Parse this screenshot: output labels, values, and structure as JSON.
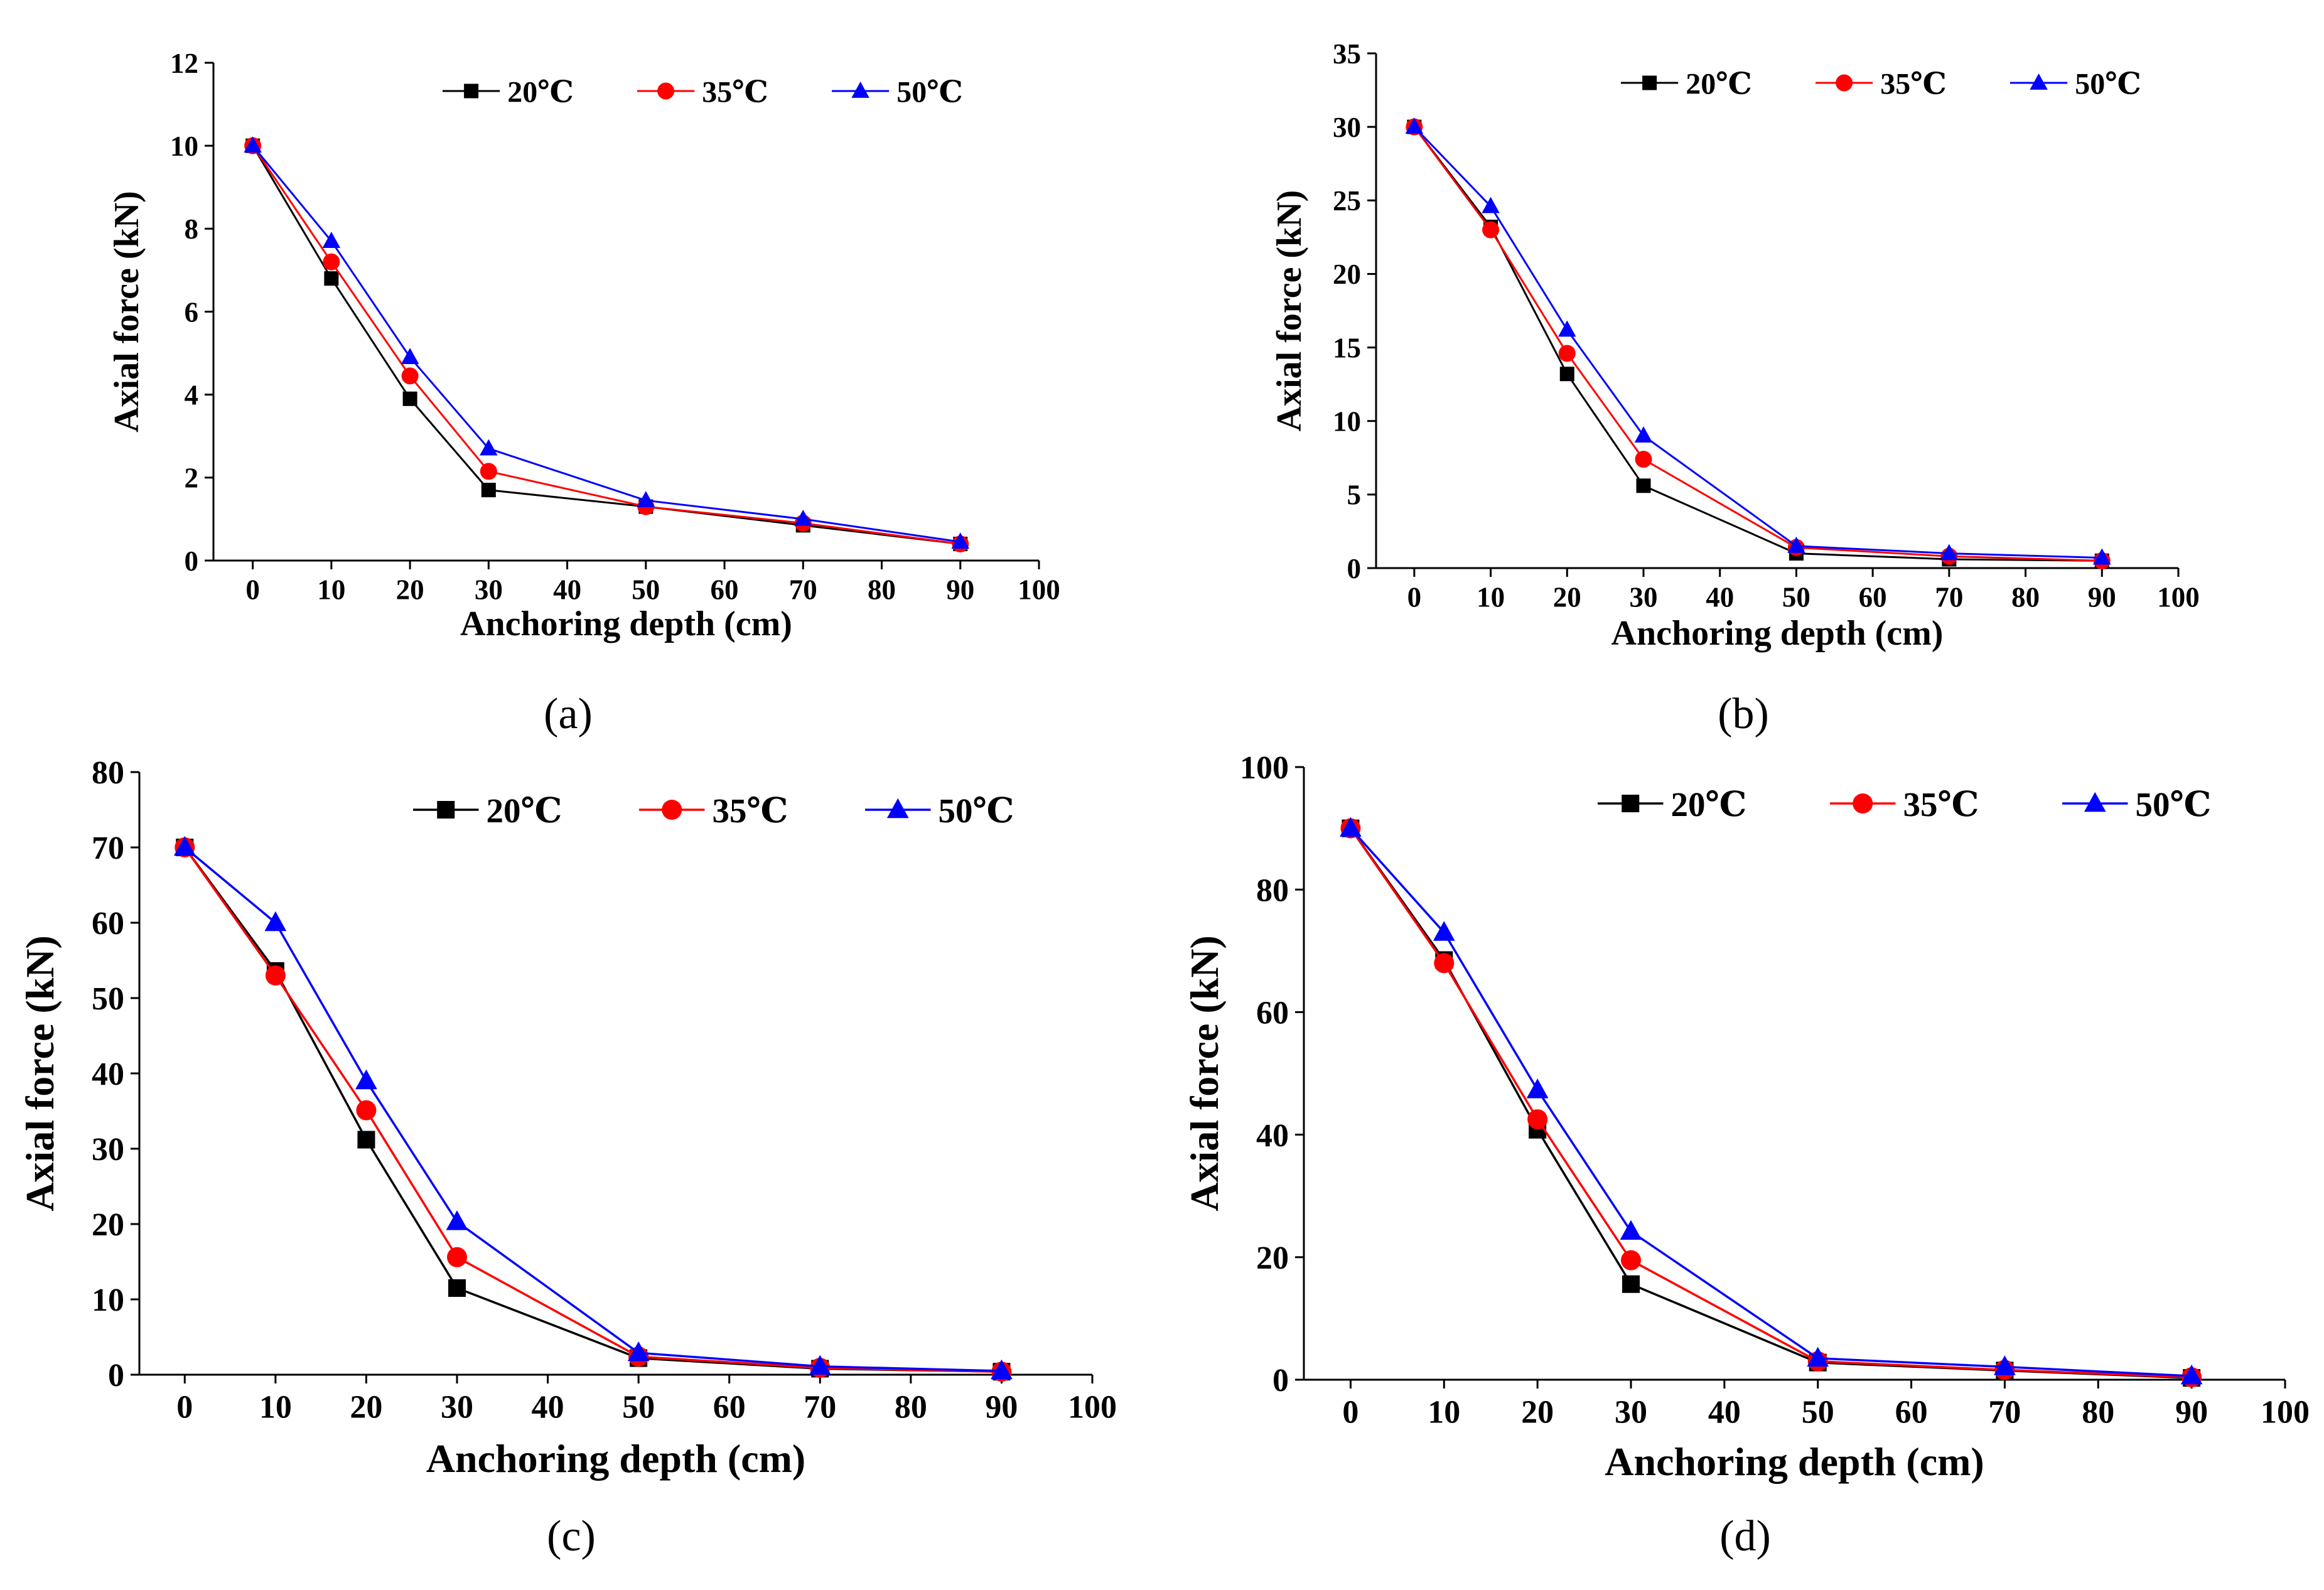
{
  "chart_data": [
    {
      "type": "line",
      "panel": "a",
      "caption": "(a)",
      "xlabel": "Anchoring depth (cm)",
      "ylabel": "Axial force (kN)",
      "xlim": [
        -5,
        100
      ],
      "ylim": [
        0,
        12
      ],
      "xticks": [
        0,
        10,
        20,
        30,
        40,
        50,
        60,
        70,
        80,
        90,
        100
      ],
      "yticks": [
        0,
        2,
        4,
        6,
        8,
        10,
        12
      ],
      "legend_position": "top-right",
      "x": [
        0,
        10,
        20,
        30,
        50,
        70,
        90
      ],
      "series": [
        {
          "name": "20℃",
          "color": "#000000",
          "marker": "square",
          "values": [
            10.0,
            6.8,
            3.9,
            1.7,
            1.3,
            0.85,
            0.4
          ]
        },
        {
          "name": "35℃",
          "color": "#ff0000",
          "marker": "circle",
          "values": [
            10.0,
            7.2,
            4.45,
            2.15,
            1.3,
            0.9,
            0.4
          ]
        },
        {
          "name": "50℃",
          "color": "#0000ff",
          "marker": "triangle",
          "values": [
            10.0,
            7.7,
            4.9,
            2.7,
            1.45,
            1.0,
            0.45
          ]
        }
      ]
    },
    {
      "type": "line",
      "panel": "b",
      "caption": "(b)",
      "xlabel": "Anchoring depth (cm)",
      "ylabel": "Axial force (kN)",
      "xlim": [
        -5,
        100
      ],
      "ylim": [
        0,
        35
      ],
      "xticks": [
        0,
        10,
        20,
        30,
        40,
        50,
        60,
        70,
        80,
        90,
        100
      ],
      "yticks": [
        0,
        5,
        10,
        15,
        20,
        25,
        30,
        35
      ],
      "legend_position": "top-right",
      "x": [
        0,
        10,
        20,
        30,
        50,
        70,
        90
      ],
      "series": [
        {
          "name": "20℃",
          "color": "#000000",
          "marker": "square",
          "values": [
            30.0,
            23.2,
            13.2,
            5.6,
            1.0,
            0.6,
            0.5
          ]
        },
        {
          "name": "35℃",
          "color": "#ff0000",
          "marker": "circle",
          "values": [
            30.0,
            23.0,
            14.6,
            7.4,
            1.4,
            0.8,
            0.5
          ]
        },
        {
          "name": "50℃",
          "color": "#0000ff",
          "marker": "triangle",
          "values": [
            30.0,
            24.6,
            16.2,
            9.0,
            1.5,
            1.0,
            0.7
          ]
        }
      ]
    },
    {
      "type": "line",
      "panel": "c",
      "caption": "(c)",
      "xlabel": "Anchoring depth (cm)",
      "ylabel": "Axial force (kN)",
      "xlim": [
        -5,
        100
      ],
      "ylim": [
        0,
        80
      ],
      "xticks": [
        0,
        10,
        20,
        30,
        40,
        50,
        60,
        70,
        80,
        90,
        100
      ],
      "yticks": [
        0,
        10,
        20,
        30,
        40,
        50,
        60,
        70,
        80
      ],
      "legend_position": "top-right",
      "x": [
        0,
        10,
        20,
        30,
        50,
        70,
        90
      ],
      "series": [
        {
          "name": "20℃",
          "color": "#000000",
          "marker": "square",
          "values": [
            70.0,
            53.6,
            31.2,
            11.5,
            2.2,
            0.8,
            0.4
          ]
        },
        {
          "name": "35℃",
          "color": "#ff0000",
          "marker": "circle",
          "values": [
            70.0,
            53.0,
            35.1,
            15.6,
            2.4,
            0.9,
            0.4
          ]
        },
        {
          "name": "50℃",
          "color": "#0000ff",
          "marker": "triangle",
          "values": [
            70.0,
            60.0,
            39.0,
            20.3,
            2.9,
            1.1,
            0.5
          ]
        }
      ]
    },
    {
      "type": "line",
      "panel": "d",
      "caption": "(d)",
      "xlabel": "Anchoring depth (cm)",
      "ylabel": "Axial force (kN)",
      "xlim": [
        -5,
        100
      ],
      "ylim": [
        0,
        100
      ],
      "xticks": [
        0,
        10,
        20,
        30,
        40,
        50,
        60,
        70,
        80,
        90,
        100
      ],
      "yticks": [
        0,
        20,
        40,
        60,
        80,
        100
      ],
      "legend_position": "top-right",
      "x": [
        0,
        10,
        20,
        30,
        50,
        70,
        90
      ],
      "series": [
        {
          "name": "20℃",
          "color": "#000000",
          "marker": "square",
          "values": [
            90.0,
            68.5,
            40.8,
            15.6,
            2.8,
            1.5,
            0.3
          ]
        },
        {
          "name": "35℃",
          "color": "#ff0000",
          "marker": "circle",
          "values": [
            90.0,
            68.0,
            42.5,
            19.5,
            3.0,
            1.6,
            0.4
          ]
        },
        {
          "name": "50℃",
          "color": "#0000ff",
          "marker": "triangle",
          "values": [
            90.0,
            73.0,
            47.3,
            24.2,
            3.5,
            2.1,
            0.6
          ]
        }
      ]
    }
  ]
}
